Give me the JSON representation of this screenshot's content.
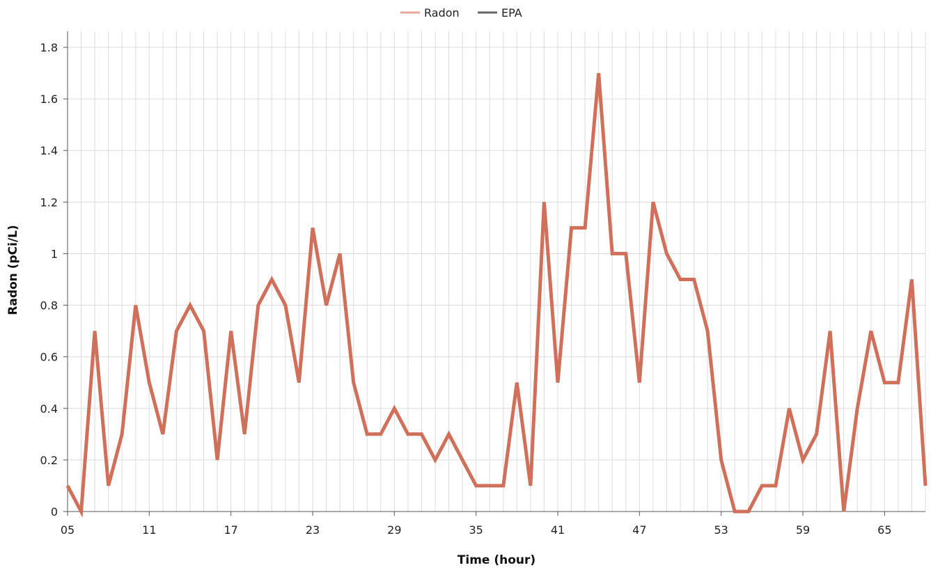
{
  "chart_data": {
    "type": "line",
    "xlabel": "Time (hour)",
    "ylabel": "Radon (pCi/L)",
    "ylim": [
      0,
      1.8
    ],
    "y_ticks": [
      "0",
      "0.2",
      "0.4",
      "0.6",
      "0.8",
      "1",
      "1.2",
      "1.4",
      "1.6",
      "1.8"
    ],
    "x_tick_labels": [
      "05",
      "11",
      "17",
      "23",
      "29",
      "35",
      "41",
      "47",
      "53",
      "59",
      "65"
    ],
    "grid": true,
    "legend": {
      "placement": "top-center",
      "items": [
        {
          "name": "Radon",
          "color": "#e8a898"
        },
        {
          "name": "EPA",
          "color": "#666666"
        }
      ]
    },
    "series": [
      {
        "name": "Radon",
        "color": "#d0705a",
        "values": [
          0.1,
          0.0,
          0.7,
          0.1,
          0.3,
          0.8,
          0.5,
          0.3,
          0.7,
          0.8,
          0.7,
          0.2,
          0.7,
          0.3,
          0.8,
          0.9,
          0.8,
          0.5,
          1.1,
          0.8,
          1.0,
          0.5,
          0.3,
          0.3,
          0.4,
          0.3,
          0.3,
          0.2,
          0.3,
          0.2,
          0.1,
          0.1,
          0.1,
          0.5,
          0.1,
          1.2,
          0.5,
          1.1,
          1.1,
          1.7,
          1.0,
          1.0,
          0.5,
          1.2,
          1.0,
          0.9,
          0.9,
          0.7,
          0.2,
          0.0,
          0.0,
          0.1,
          0.1,
          0.4,
          0.2,
          0.3,
          0.7,
          0.0,
          0.4,
          0.7,
          0.5,
          0.5,
          0.9,
          0.1
        ]
      }
    ]
  }
}
